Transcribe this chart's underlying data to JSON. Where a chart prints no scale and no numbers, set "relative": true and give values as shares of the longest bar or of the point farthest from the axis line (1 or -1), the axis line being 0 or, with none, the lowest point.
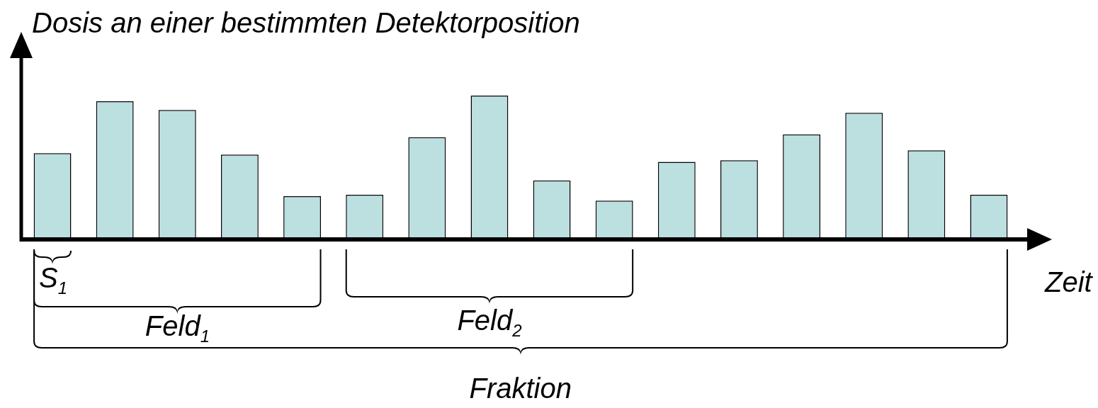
{
  "chart_data": {
    "type": "bar",
    "relative": true,
    "tick_labels": false,
    "ylabel": "Dosis an einer bestimmten Detektorposition",
    "xlabel": "Zeit",
    "color": "#bcdfe0",
    "categories": [
      null,
      null,
      null,
      null,
      null,
      null,
      null,
      null,
      null,
      null,
      null,
      null,
      null,
      null,
      null,
      null
    ],
    "values": [
      0.6,
      0.96,
      0.9,
      0.59,
      0.3,
      0.31,
      0.71,
      1,
      0.41,
      0.27,
      0.54,
      0.55,
      0.73,
      0.88,
      0.62,
      0.31
    ],
    "annotations": [
      "S$_{1}$",
      "Feld$_{1}$",
      "Feld$_{2}$",
      "Fraktion"
    ]
  }
}
